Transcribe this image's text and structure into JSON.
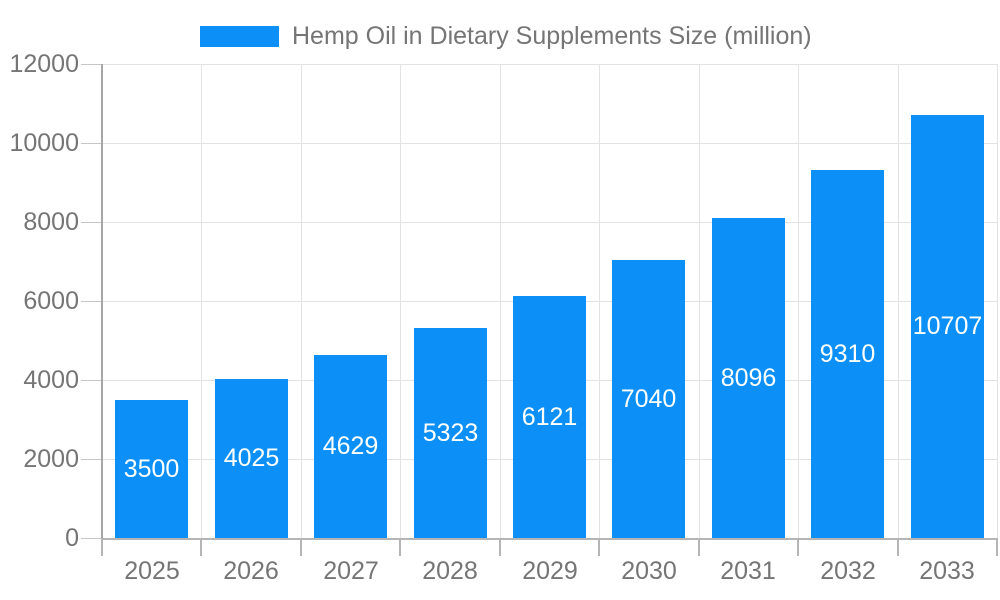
{
  "chart_data": {
    "type": "bar",
    "title": "Hemp Oil in Dietary Supplements Size (million)",
    "legend": {
      "position": "top",
      "label": "Hemp Oil in Dietary Supplements Size (million)"
    },
    "categories": [
      "2025",
      "2026",
      "2027",
      "2028",
      "2029",
      "2030",
      "2031",
      "2032",
      "2033"
    ],
    "series": [
      {
        "name": "Hemp Oil in Dietary Supplements Size (million)",
        "values": [
          3500,
          4025,
          4629,
          5323,
          6121,
          7040,
          8096,
          9310,
          10707
        ]
      }
    ],
    "value_labels": [
      "3500",
      "4025",
      "4629",
      "5323",
      "6121",
      "7040",
      "8096",
      "9310",
      "10707"
    ],
    "value_label_position": "inside-center",
    "xlabel": "",
    "ylabel": "",
    "ylim": [
      0,
      12000
    ],
    "y_tick_step": 2000,
    "y_tick_labels": [
      "0",
      "2000",
      "4000",
      "6000",
      "8000",
      "10000",
      "12000"
    ],
    "grid": true,
    "colors": {
      "bar": "#0C90F7",
      "value_label": "#FFFFFF",
      "axis_label": "#757575",
      "legend_text": "#757575",
      "gridline": "#E3E3E3",
      "axis_line": "#B5B5B5",
      "y_axis_line": "#A6A6A6",
      "tick": "#C6C6C6"
    }
  }
}
